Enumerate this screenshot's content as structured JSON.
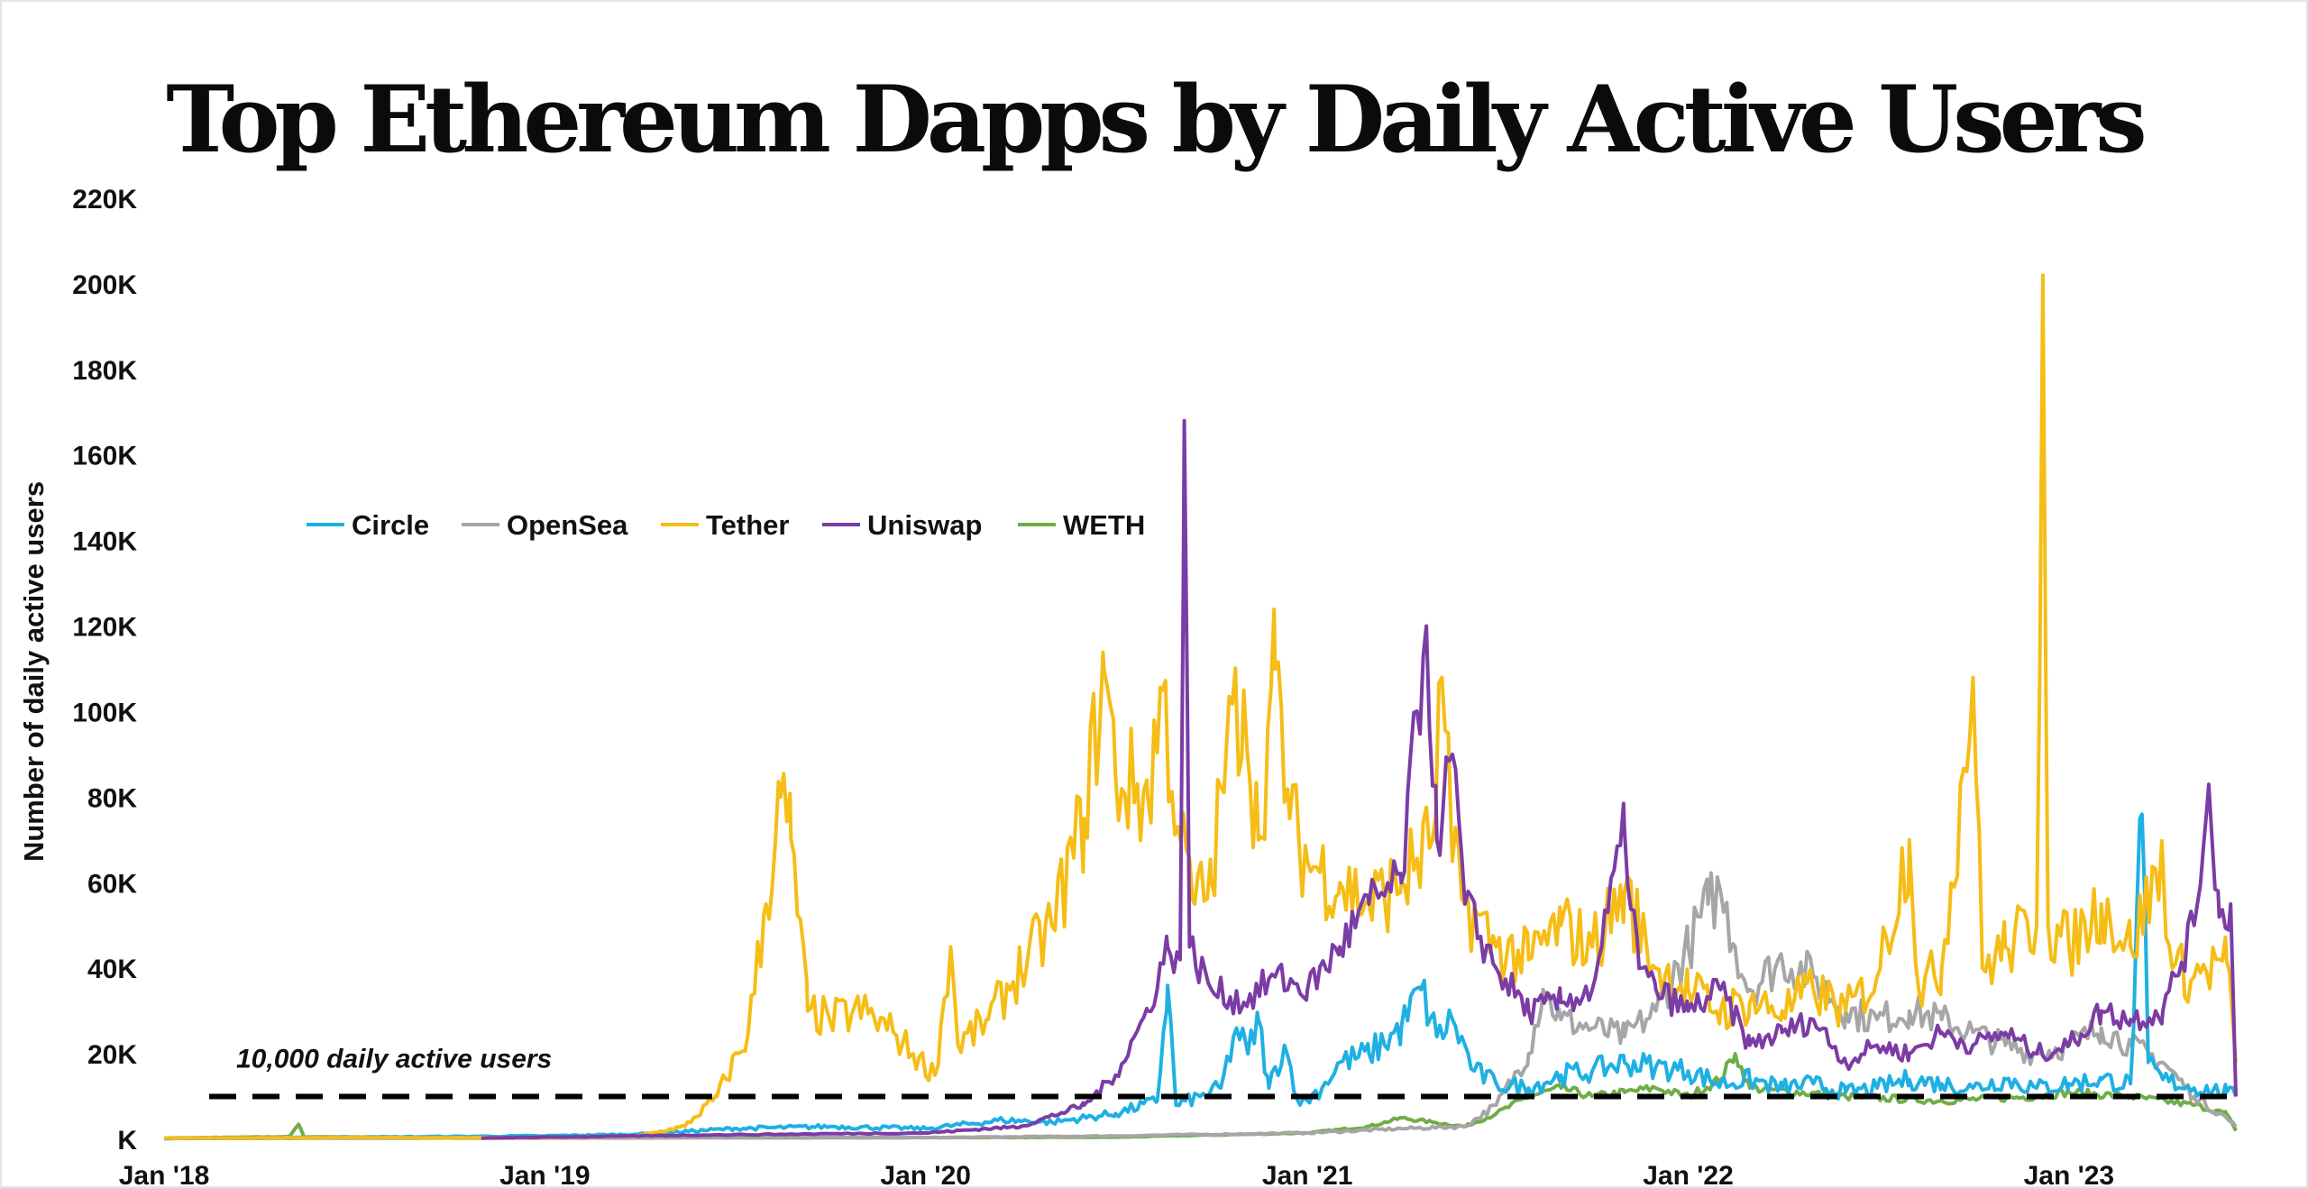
{
  "chart_data": {
    "type": "line",
    "title": "Top Ethereum Dapps by Daily Active Users",
    "ylabel": "Number of daily active users",
    "xlabel": "",
    "ylim": [
      0,
      220000
    ],
    "y_ticks": [
      {
        "value": 0,
        "label": "K"
      },
      {
        "value": 20000,
        "label": "20K"
      },
      {
        "value": 40000,
        "label": "40K"
      },
      {
        "value": 60000,
        "label": "60K"
      },
      {
        "value": 80000,
        "label": "80K"
      },
      {
        "value": 100000,
        "label": "100K"
      },
      {
        "value": 120000,
        "label": "120K"
      },
      {
        "value": 140000,
        "label": "140K"
      },
      {
        "value": 160000,
        "label": "160K"
      },
      {
        "value": 180000,
        "label": "180K"
      },
      {
        "value": 200000,
        "label": "200K"
      },
      {
        "value": 220000,
        "label": "220K"
      }
    ],
    "xlim": [
      "2018-01-01",
      "2023-06-10"
    ],
    "x_ticks": [
      {
        "value": "2018-01-01",
        "label": "Jan '18"
      },
      {
        "value": "2019-01-01",
        "label": "Jan '19"
      },
      {
        "value": "2020-01-01",
        "label": "Jan '20"
      },
      {
        "value": "2021-01-01",
        "label": "Jan '21"
      },
      {
        "value": "2022-01-01",
        "label": "Jan '22"
      },
      {
        "value": "2023-01-01",
        "label": "Jan '23"
      }
    ],
    "grid": false,
    "legend_position": "upper-left",
    "reference_line": {
      "value": 10000,
      "label": "10,000 daily active users",
      "style": "dashed",
      "color": "#000000"
    },
    "series": [
      {
        "name": "Circle",
        "color": "#1fb0e3",
        "points": [
          [
            "2018-01-01",
            200
          ],
          [
            "2018-07-01",
            500
          ],
          [
            "2019-01-01",
            800
          ],
          [
            "2019-04-01",
            1200
          ],
          [
            "2019-07-01",
            2500
          ],
          [
            "2019-10-01",
            3000
          ],
          [
            "2020-01-01",
            2500
          ],
          [
            "2020-03-15",
            4500
          ],
          [
            "2020-05-01",
            4000
          ],
          [
            "2020-07-01",
            6000
          ],
          [
            "2020-08-10",
            9000
          ],
          [
            "2020-08-20",
            36000
          ],
          [
            "2020-08-28",
            8000
          ],
          [
            "2020-09-20",
            10000
          ],
          [
            "2020-10-10",
            12000
          ],
          [
            "2020-10-25",
            26000
          ],
          [
            "2020-11-05",
            20000
          ],
          [
            "2020-11-15",
            28000
          ],
          [
            "2020-11-25",
            12000
          ],
          [
            "2020-12-10",
            22000
          ],
          [
            "2020-12-25",
            8000
          ],
          [
            "2021-01-15",
            12000
          ],
          [
            "2021-02-01",
            18000
          ],
          [
            "2021-03-01",
            20000
          ],
          [
            "2021-04-01",
            26000
          ],
          [
            "2021-04-20",
            35000
          ],
          [
            "2021-05-05",
            24000
          ],
          [
            "2021-05-20",
            28000
          ],
          [
            "2021-06-10",
            16000
          ],
          [
            "2021-07-01",
            13000
          ],
          [
            "2021-08-01",
            12000
          ],
          [
            "2021-09-01",
            15000
          ],
          [
            "2021-10-01",
            16000
          ],
          [
            "2021-11-01",
            18000
          ],
          [
            "2021-12-01",
            17000
          ],
          [
            "2022-01-01",
            16000
          ],
          [
            "2022-02-01",
            13000
          ],
          [
            "2022-03-01",
            14000
          ],
          [
            "2022-04-01",
            12000
          ],
          [
            "2022-05-01",
            13000
          ],
          [
            "2022-06-01",
            11000
          ],
          [
            "2022-07-01",
            12000
          ],
          [
            "2022-08-01",
            14000
          ],
          [
            "2022-09-01",
            13000
          ],
          [
            "2022-10-01",
            12000
          ],
          [
            "2022-11-01",
            14000
          ],
          [
            "2022-12-01",
            12000
          ],
          [
            "2023-01-01",
            13000
          ],
          [
            "2023-02-01",
            14000
          ],
          [
            "2023-03-01",
            13000
          ],
          [
            "2023-03-12",
            76000
          ],
          [
            "2023-03-18",
            18000
          ],
          [
            "2023-04-01",
            14000
          ],
          [
            "2023-05-01",
            12000
          ],
          [
            "2023-06-01",
            11000
          ],
          [
            "2023-06-10",
            10000
          ]
        ]
      },
      {
        "name": "OpenSea",
        "color": "#a6a6a6",
        "points": [
          [
            "2018-01-01",
            200
          ],
          [
            "2019-01-01",
            300
          ],
          [
            "2020-01-01",
            400
          ],
          [
            "2020-07-01",
            800
          ],
          [
            "2021-01-01",
            1500
          ],
          [
            "2021-04-01",
            2500
          ],
          [
            "2021-06-01",
            3000
          ],
          [
            "2021-07-01",
            8000
          ],
          [
            "2021-08-01",
            20000
          ],
          [
            "2021-08-15",
            35000
          ],
          [
            "2021-09-01",
            28000
          ],
          [
            "2021-10-01",
            26000
          ],
          [
            "2021-11-01",
            24000
          ],
          [
            "2021-12-01",
            30000
          ],
          [
            "2022-01-01",
            45000
          ],
          [
            "2022-01-20",
            55000
          ],
          [
            "2022-02-01",
            58000
          ],
          [
            "2022-02-15",
            45000
          ],
          [
            "2022-03-01",
            35000
          ],
          [
            "2022-04-01",
            42000
          ],
          [
            "2022-05-01",
            38000
          ],
          [
            "2022-06-01",
            30000
          ],
          [
            "2022-07-01",
            28000
          ],
          [
            "2022-08-01",
            30000
          ],
          [
            "2022-09-01",
            28000
          ],
          [
            "2022-10-01",
            25000
          ],
          [
            "2022-11-01",
            22000
          ],
          [
            "2022-12-01",
            20000
          ],
          [
            "2023-01-01",
            22000
          ],
          [
            "2023-02-01",
            26000
          ],
          [
            "2023-03-01",
            22000
          ],
          [
            "2023-04-01",
            18000
          ],
          [
            "2023-05-01",
            10000
          ],
          [
            "2023-06-01",
            5000
          ],
          [
            "2023-06-10",
            3000
          ]
        ]
      },
      {
        "name": "Tether",
        "color": "#f6bd16",
        "points": [
          [
            "2018-01-01",
            300
          ],
          [
            "2018-07-01",
            400
          ],
          [
            "2019-01-01",
            400
          ],
          [
            "2019-04-01",
            800
          ],
          [
            "2019-05-15",
            3000
          ],
          [
            "2019-06-15",
            10000
          ],
          [
            "2019-07-15",
            25000
          ],
          [
            "2019-08-01",
            55000
          ],
          [
            "2019-08-15",
            80000
          ],
          [
            "2019-08-25",
            70000
          ],
          [
            "2019-09-10",
            30000
          ],
          [
            "2019-10-01",
            28000
          ],
          [
            "2019-11-01",
            30000
          ],
          [
            "2019-12-01",
            25000
          ],
          [
            "2019-12-20",
            20000
          ],
          [
            "2020-01-10",
            15000
          ],
          [
            "2020-01-25",
            45000
          ],
          [
            "2020-02-01",
            22000
          ],
          [
            "2020-03-01",
            28000
          ],
          [
            "2020-04-01",
            40000
          ],
          [
            "2020-05-01",
            50000
          ],
          [
            "2020-06-01",
            75000
          ],
          [
            "2020-06-20",
            110000
          ],
          [
            "2020-07-01",
            85000
          ],
          [
            "2020-08-01",
            80000
          ],
          [
            "2020-08-15",
            105000
          ],
          [
            "2020-09-01",
            70000
          ],
          [
            "2020-09-15",
            55000
          ],
          [
            "2020-10-01",
            60000
          ],
          [
            "2020-10-15",
            90000
          ],
          [
            "2020-11-01",
            105000
          ],
          [
            "2020-11-15",
            70000
          ],
          [
            "2020-12-01",
            110000
          ],
          [
            "2020-12-15",
            75000
          ],
          [
            "2021-01-01",
            65000
          ],
          [
            "2021-02-01",
            60000
          ],
          [
            "2021-03-01",
            55000
          ],
          [
            "2021-04-01",
            60000
          ],
          [
            "2021-05-01",
            70000
          ],
          [
            "2021-05-10",
            108000
          ],
          [
            "2021-05-20",
            65000
          ],
          [
            "2021-06-01",
            55000
          ],
          [
            "2021-07-01",
            45000
          ],
          [
            "2021-08-01",
            42000
          ],
          [
            "2021-09-01",
            50000
          ],
          [
            "2021-10-01",
            45000
          ],
          [
            "2021-11-01",
            58000
          ],
          [
            "2021-12-01",
            40000
          ],
          [
            "2022-01-01",
            35000
          ],
          [
            "2022-02-01",
            30000
          ],
          [
            "2022-03-01",
            32000
          ],
          [
            "2022-04-01",
            30000
          ],
          [
            "2022-05-01",
            35000
          ],
          [
            "2022-06-01",
            30000
          ],
          [
            "2022-07-01",
            38000
          ],
          [
            "2022-08-01",
            70000
          ],
          [
            "2022-08-10",
            35000
          ],
          [
            "2022-09-01",
            40000
          ],
          [
            "2022-10-01",
            108000
          ],
          [
            "2022-10-10",
            40000
          ],
          [
            "2022-11-01",
            45000
          ],
          [
            "2022-12-01",
            50000
          ],
          [
            "2022-12-07",
            202000
          ],
          [
            "2022-12-12",
            50000
          ],
          [
            "2023-01-01",
            45000
          ],
          [
            "2023-02-01",
            55000
          ],
          [
            "2023-03-01",
            45000
          ],
          [
            "2023-04-01",
            65000
          ],
          [
            "2023-04-10",
            40000
          ],
          [
            "2023-05-01",
            38000
          ],
          [
            "2023-06-01",
            42000
          ],
          [
            "2023-06-10",
            18000
          ]
        ]
      },
      {
        "name": "Uniswap",
        "color": "#7b3ca5",
        "points": [
          [
            "2018-11-01",
            300
          ],
          [
            "2019-01-01",
            500
          ],
          [
            "2019-06-01",
            1000
          ],
          [
            "2020-01-01",
            1500
          ],
          [
            "2020-04-01",
            3000
          ],
          [
            "2020-06-01",
            8000
          ],
          [
            "2020-07-01",
            15000
          ],
          [
            "2020-08-01",
            30000
          ],
          [
            "2020-08-20",
            45000
          ],
          [
            "2020-09-01",
            42000
          ],
          [
            "2020-09-05",
            168000
          ],
          [
            "2020-09-10",
            45000
          ],
          [
            "2020-10-01",
            35000
          ],
          [
            "2020-11-01",
            32000
          ],
          [
            "2020-12-01",
            38000
          ],
          [
            "2021-01-01",
            35000
          ],
          [
            "2021-02-01",
            45000
          ],
          [
            "2021-03-01",
            55000
          ],
          [
            "2021-04-01",
            60000
          ],
          [
            "2021-04-25",
            120000
          ],
          [
            "2021-05-05",
            70000
          ],
          [
            "2021-05-20",
            90000
          ],
          [
            "2021-06-01",
            55000
          ],
          [
            "2021-07-01",
            40000
          ],
          [
            "2021-08-01",
            30000
          ],
          [
            "2021-09-01",
            32000
          ],
          [
            "2021-10-01",
            35000
          ],
          [
            "2021-11-01",
            72000
          ],
          [
            "2021-11-15",
            40000
          ],
          [
            "2021-12-01",
            35000
          ],
          [
            "2022-01-01",
            30000
          ],
          [
            "2022-02-01",
            35000
          ],
          [
            "2022-03-01",
            22000
          ],
          [
            "2022-04-01",
            25000
          ],
          [
            "2022-05-01",
            28000
          ],
          [
            "2022-06-01",
            18000
          ],
          [
            "2022-07-01",
            22000
          ],
          [
            "2022-08-01",
            20000
          ],
          [
            "2022-09-01",
            25000
          ],
          [
            "2022-10-01",
            22000
          ],
          [
            "2022-11-01",
            25000
          ],
          [
            "2022-12-01",
            20000
          ],
          [
            "2023-01-01",
            22000
          ],
          [
            "2023-02-01",
            30000
          ],
          [
            "2023-03-01",
            28000
          ],
          [
            "2023-04-01",
            30000
          ],
          [
            "2023-05-01",
            50000
          ],
          [
            "2023-05-15",
            83000
          ],
          [
            "2023-05-25",
            52000
          ],
          [
            "2023-06-05",
            55000
          ],
          [
            "2023-06-10",
            10000
          ]
        ]
      },
      {
        "name": "WETH",
        "color": "#70ad47",
        "points": [
          [
            "2018-01-01",
            300
          ],
          [
            "2018-05-01",
            600
          ],
          [
            "2018-05-10",
            3500
          ],
          [
            "2018-05-15",
            600
          ],
          [
            "2019-01-01",
            400
          ],
          [
            "2020-01-01",
            400
          ],
          [
            "2020-07-01",
            500
          ],
          [
            "2021-01-01",
            1500
          ],
          [
            "2021-03-01",
            3000
          ],
          [
            "2021-04-01",
            5000
          ],
          [
            "2021-05-01",
            4000
          ],
          [
            "2021-06-01",
            3000
          ],
          [
            "2021-07-01",
            6000
          ],
          [
            "2021-08-01",
            10000
          ],
          [
            "2021-09-01",
            12000
          ],
          [
            "2021-10-01",
            10000
          ],
          [
            "2021-11-01",
            11000
          ],
          [
            "2021-12-01",
            12000
          ],
          [
            "2022-01-01",
            10000
          ],
          [
            "2022-02-01",
            14000
          ],
          [
            "2022-02-15",
            20000
          ],
          [
            "2022-03-01",
            12000
          ],
          [
            "2022-06-01",
            10000
          ],
          [
            "2022-09-01",
            9000
          ],
          [
            "2022-12-01",
            10000
          ],
          [
            "2023-01-01",
            11000
          ],
          [
            "2023-03-01",
            10000
          ],
          [
            "2023-05-01",
            8000
          ],
          [
            "2023-06-01",
            6000
          ],
          [
            "2023-06-10",
            2000
          ]
        ]
      }
    ]
  }
}
